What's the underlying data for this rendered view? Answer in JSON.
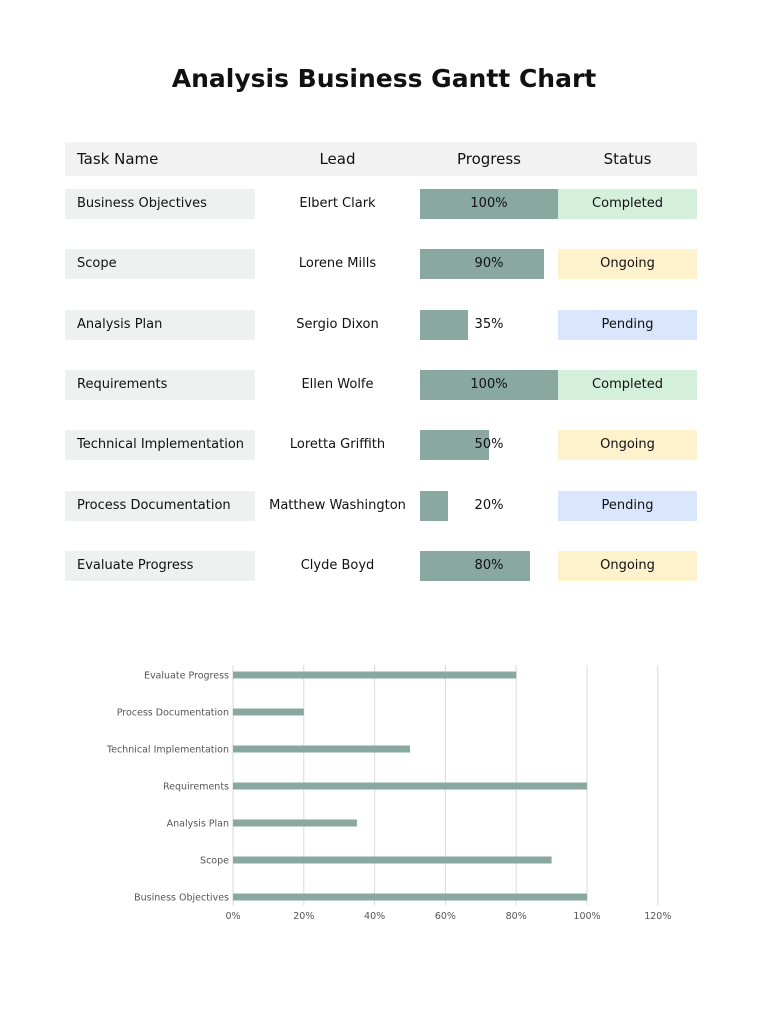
{
  "title": "Analysis Business Gantt Chart",
  "table": {
    "headers": {
      "task": "Task Name",
      "lead": "Lead",
      "progress": "Progress",
      "status": "Status"
    },
    "rows": [
      {
        "task": "Business Objectives",
        "lead": "Elbert Clark",
        "progress": 100,
        "progress_label": "100%",
        "status": "Completed"
      },
      {
        "task": "Scope",
        "lead": "Lorene Mills",
        "progress": 90,
        "progress_label": "90%",
        "status": "Ongoing"
      },
      {
        "task": "Analysis Plan",
        "lead": "Sergio Dixon",
        "progress": 35,
        "progress_label": "35%",
        "status": "Pending"
      },
      {
        "task": "Requirements",
        "lead": "Ellen Wolfe",
        "progress": 100,
        "progress_label": "100%",
        "status": "Completed"
      },
      {
        "task": "Technical Implementation",
        "lead": "Loretta Griffith",
        "progress": 50,
        "progress_label": "50%",
        "status": "Ongoing"
      },
      {
        "task": "Process Documentation",
        "lead": "Matthew Washington",
        "progress": 20,
        "progress_label": "20%",
        "status": "Pending"
      },
      {
        "task": "Evaluate Progress",
        "lead": "Clyde Boyd",
        "progress": 80,
        "progress_label": "80%",
        "status": "Ongoing"
      }
    ]
  },
  "colors": {
    "bar": "#88a8a0",
    "Completed": "#d4f0dc",
    "Ongoing": "#fdf2cc",
    "Pending": "#d9e6fb",
    "task_bg": "#eef1f0",
    "header_bg": "#f2f2f2"
  },
  "chart_data": {
    "type": "bar",
    "orientation": "horizontal",
    "categories": [
      "Business Objectives",
      "Scope",
      "Analysis Plan",
      "Requirements",
      "Technical Implementation",
      "Process Documentation",
      "Evaluate Progress"
    ],
    "values": [
      100,
      90,
      35,
      100,
      50,
      20,
      80
    ],
    "xlim": [
      0,
      120
    ],
    "xticks": [
      "0%",
      "20%",
      "40%",
      "60%",
      "80%",
      "100%",
      "120%"
    ],
    "grid": "vertical",
    "title": "",
    "xlabel": "",
    "ylabel": ""
  }
}
